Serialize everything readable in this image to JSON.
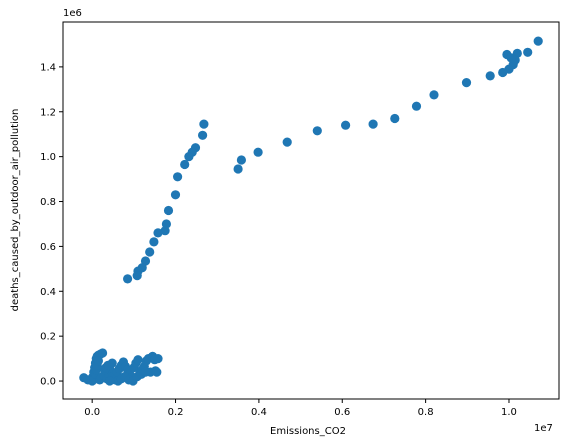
{
  "chart_data": {
    "type": "scatter",
    "title": "",
    "xlabel": "Emissions_CO2",
    "ylabel": "deaths_caused_by_outdoor_air_pollution",
    "x_offset_label": "1e7",
    "y_offset_label": "1e6",
    "xlim": [
      -0.07,
      1.12
    ],
    "ylim": [
      -0.08,
      1.6
    ],
    "x_ticks": [
      0.0,
      0.2,
      0.4,
      0.6,
      0.8,
      1.0
    ],
    "x_tick_labels": [
      "0.0",
      "0.2",
      "0.4",
      "0.6",
      "0.8",
      "1.0"
    ],
    "y_ticks": [
      0.0,
      0.2,
      0.4,
      0.6,
      0.8,
      1.0,
      1.2,
      1.4
    ],
    "y_tick_labels": [
      "0.0",
      "0.2",
      "0.4",
      "0.6",
      "0.8",
      "1.0",
      "1.2",
      "1.4"
    ],
    "grid": false,
    "legend": "none",
    "color": "#1f77b4",
    "series": [
      {
        "points": [
          [
            1.07,
            1.515
          ],
          [
            1.045,
            1.465
          ],
          [
            1.02,
            1.46
          ],
          [
            1.015,
            1.43
          ],
          [
            1.01,
            1.41
          ],
          [
            1.0,
            1.39
          ],
          [
            0.995,
            1.455
          ],
          [
            1.005,
            1.44
          ],
          [
            0.985,
            1.375
          ],
          [
            0.955,
            1.36
          ],
          [
            0.898,
            1.33
          ],
          [
            0.82,
            1.275
          ],
          [
            0.778,
            1.225
          ],
          [
            0.726,
            1.17
          ],
          [
            0.674,
            1.145
          ],
          [
            0.608,
            1.14
          ],
          [
            0.54,
            1.115
          ],
          [
            0.468,
            1.065
          ],
          [
            0.398,
            1.02
          ],
          [
            0.358,
            0.985
          ],
          [
            0.35,
            0.945
          ],
          [
            0.268,
            1.145
          ],
          [
            0.265,
            1.095
          ],
          [
            0.248,
            1.04
          ],
          [
            0.24,
            1.02
          ],
          [
            0.232,
            1.0
          ],
          [
            0.222,
            0.965
          ],
          [
            0.205,
            0.91
          ],
          [
            0.2,
            0.83
          ],
          [
            0.183,
            0.76
          ],
          [
            0.178,
            0.7
          ],
          [
            0.175,
            0.67
          ],
          [
            0.158,
            0.66
          ],
          [
            0.148,
            0.62
          ],
          [
            0.138,
            0.575
          ],
          [
            0.128,
            0.535
          ],
          [
            0.12,
            0.505
          ],
          [
            0.11,
            0.49
          ],
          [
            0.108,
            0.47
          ],
          [
            0.085,
            0.455
          ],
          [
            -0.02,
            0.015
          ],
          [
            -0.01,
            0.005
          ],
          [
            0.0,
            0.0
          ],
          [
            0.002,
            0.02
          ],
          [
            0.004,
            0.04
          ],
          [
            0.006,
            0.06
          ],
          [
            0.008,
            0.08
          ],
          [
            0.01,
            0.1
          ],
          [
            0.012,
            0.11
          ],
          [
            0.015,
            0.115
          ],
          [
            0.02,
            0.12
          ],
          [
            0.025,
            0.125
          ],
          [
            0.005,
            0.01
          ],
          [
            0.008,
            0.03
          ],
          [
            0.01,
            0.05
          ],
          [
            0.012,
            0.07
          ],
          [
            0.015,
            0.09
          ],
          [
            0.018,
            0.005
          ],
          [
            0.022,
            0.015
          ],
          [
            0.028,
            0.025
          ],
          [
            0.035,
            0.01
          ],
          [
            0.04,
            0.03
          ],
          [
            0.045,
            0.045
          ],
          [
            0.05,
            0.02
          ],
          [
            0.055,
            0.005
          ],
          [
            0.06,
            0.04
          ],
          [
            0.065,
            0.055
          ],
          [
            0.07,
            0.07
          ],
          [
            0.075,
            0.085
          ],
          [
            0.08,
            0.065
          ],
          [
            0.085,
            0.05
          ],
          [
            0.09,
            0.03
          ],
          [
            0.095,
            0.015
          ],
          [
            0.1,
            0.06
          ],
          [
            0.105,
            0.08
          ],
          [
            0.11,
            0.095
          ],
          [
            0.115,
            0.035
          ],
          [
            0.12,
            0.05
          ],
          [
            0.125,
            0.065
          ],
          [
            0.13,
            0.09
          ],
          [
            0.135,
            0.1
          ],
          [
            0.14,
            0.04
          ],
          [
            0.145,
            0.11
          ],
          [
            0.15,
            0.095
          ],
          [
            0.152,
            0.045
          ],
          [
            0.155,
            0.04
          ],
          [
            0.158,
            0.1
          ],
          [
            0.062,
            0.0
          ],
          [
            0.07,
            0.01
          ],
          [
            0.078,
            0.02
          ],
          [
            0.088,
            0.005
          ],
          [
            0.098,
            0.0
          ],
          [
            0.108,
            0.02
          ],
          [
            0.118,
            0.03
          ],
          [
            0.128,
            0.04
          ],
          [
            0.03,
            0.05
          ],
          [
            0.033,
            0.06
          ],
          [
            0.038,
            0.07
          ],
          [
            0.042,
            0.0
          ],
          [
            0.048,
            0.08
          ]
        ]
      }
    ]
  }
}
